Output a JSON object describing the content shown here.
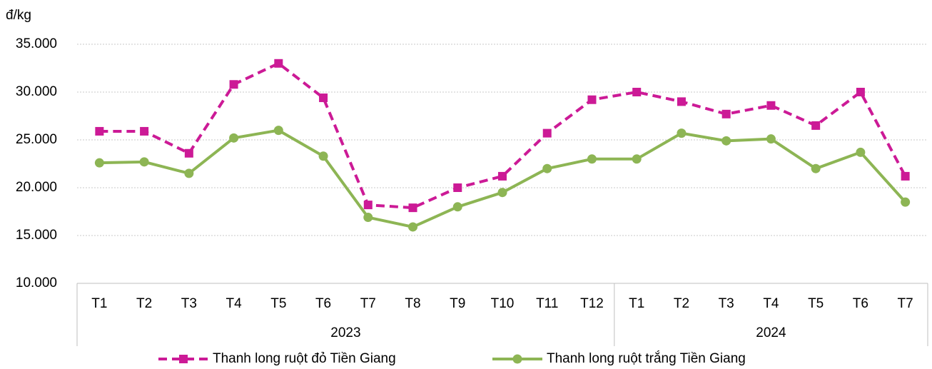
{
  "chart_data": {
    "type": "line",
    "y_unit": "đ/kg",
    "category_groups": [
      {
        "label": "2023",
        "categories": [
          "T1",
          "T2",
          "T3",
          "T4",
          "T5",
          "T6",
          "T7",
          "T8",
          "T9",
          "T10",
          "T11",
          "T12"
        ]
      },
      {
        "label": "2024",
        "categories": [
          "T1",
          "T2",
          "T3",
          "T4",
          "T5",
          "T6",
          "T7"
        ]
      }
    ],
    "series": [
      {
        "name": "Thanh long ruột đỏ Tiền Giang",
        "color": "#cc1a96",
        "line_style": "dashed",
        "marker": "square",
        "values": [
          25900,
          25900,
          23600,
          30800,
          33000,
          29400,
          18200,
          17900,
          20000,
          21200,
          25700,
          29200,
          30000,
          29000,
          27700,
          28600,
          26500,
          30000,
          21200
        ]
      },
      {
        "name": "Thanh long ruột trắng Tiền Giang",
        "color": "#8db554",
        "line_style": "solid",
        "marker": "circle",
        "values": [
          22600,
          22700,
          21500,
          25200,
          26000,
          23300,
          16900,
          15900,
          18000,
          19500,
          22000,
          23000,
          23000,
          25700,
          24900,
          25100,
          22000,
          23700,
          18500
        ]
      }
    ],
    "ylim": [
      10000,
      35000
    ],
    "yticks": [
      {
        "value": 10000,
        "label": "10.000"
      },
      {
        "value": 15000,
        "label": "15.000"
      },
      {
        "value": 20000,
        "label": "20.000"
      },
      {
        "value": 25000,
        "label": "25.000"
      },
      {
        "value": 30000,
        "label": "30.000"
      },
      {
        "value": 35000,
        "label": "35.000"
      }
    ],
    "grid": true,
    "legend": "bottom"
  }
}
